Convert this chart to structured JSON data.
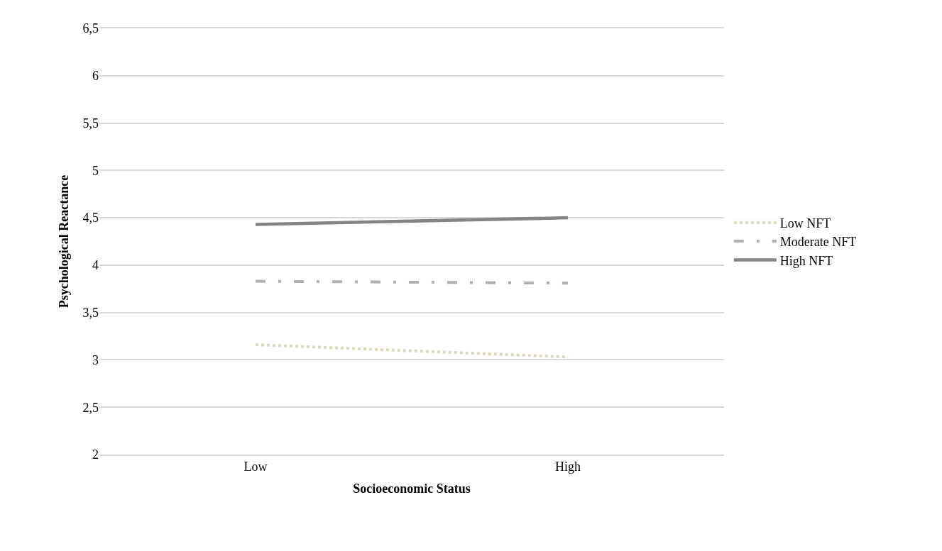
{
  "chart_data": {
    "type": "line",
    "xlabel": "Socioeconomic Status",
    "ylabel": "Psychological Reactance",
    "categories": [
      "Low",
      "High"
    ],
    "series": [
      {
        "name": "Low NFT",
        "color": "#ddd8c0",
        "values": [
          3.16,
          3.03
        ],
        "line_style": "dotted"
      },
      {
        "name": "Moderate NFT",
        "color": "#b0b0b0",
        "values": [
          3.83,
          3.81
        ],
        "line_style": "dashdot"
      },
      {
        "name": "High NFT",
        "color": "#848484",
        "values": [
          4.43,
          4.5
        ],
        "line_style": "solid"
      }
    ],
    "ylim": [
      2,
      6.5
    ],
    "yticks": [
      {
        "value": 2,
        "label": "2"
      },
      {
        "value": 2.5,
        "label": "2,5"
      },
      {
        "value": 3,
        "label": "3"
      },
      {
        "value": 3.5,
        "label": "3,5"
      },
      {
        "value": 4,
        "label": "4"
      },
      {
        "value": 4.5,
        "label": "4,5"
      },
      {
        "value": 5,
        "label": "5"
      },
      {
        "value": 5.5,
        "label": "5,5"
      },
      {
        "value": 6,
        "label": "6"
      },
      {
        "value": 6.5,
        "label": "6,5"
      }
    ],
    "grid": "y",
    "legend": "right",
    "marker": "none"
  }
}
